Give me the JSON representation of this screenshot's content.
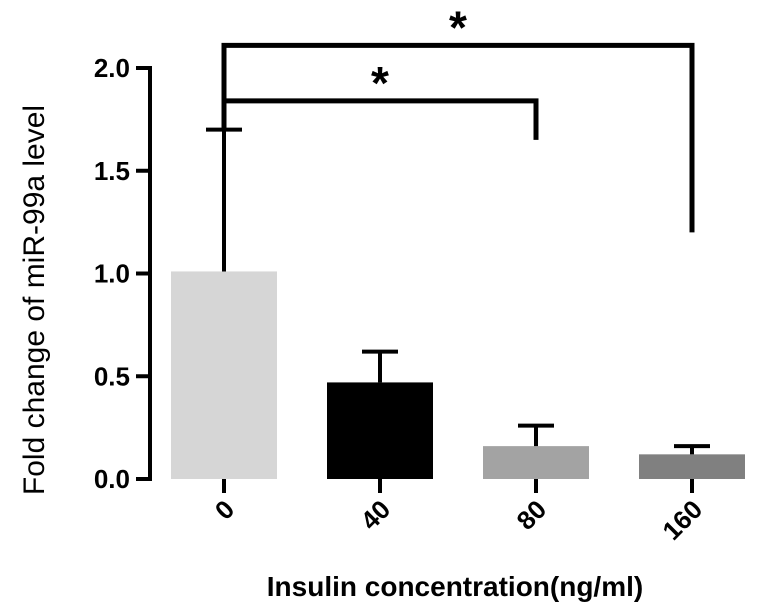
{
  "chart_data": {
    "type": "bar",
    "categories": [
      "0",
      "40",
      "80",
      "160"
    ],
    "values": [
      1.01,
      0.47,
      0.16,
      0.12
    ],
    "errors": [
      0.69,
      0.15,
      0.1,
      0.04
    ],
    "colors": [
      "#d6d6d6",
      "#000000",
      "#a3a3a3",
      "#808080"
    ],
    "xlabel": "Insulin concentration(ng/ml)",
    "ylabel": "Fold change of miR-99a level",
    "ylim": [
      0,
      2.0
    ],
    "yticks": [
      0.0,
      0.5,
      1.0,
      1.5,
      2.0
    ],
    "ytick_labels": [
      "0.0",
      "0.5",
      "1.0",
      "1.5",
      "2.0"
    ],
    "significance": [
      {
        "from": 0,
        "to": 2,
        "label": "*",
        "level": 1.84,
        "drop_to": 1.65
      },
      {
        "from": 0,
        "to": 3,
        "label": "*",
        "level": 2.11,
        "drop_to": 1.2
      }
    ]
  }
}
